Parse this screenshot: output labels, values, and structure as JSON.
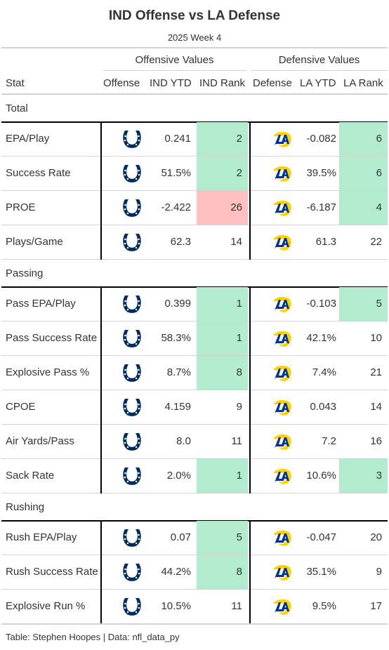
{
  "title": "IND Offense vs LA Defense",
  "subtitle": "2025 Week 4",
  "spanners": {
    "offense": "Offensive Values",
    "defense": "Defensive Values"
  },
  "columns": [
    "Stat",
    "Offense",
    "IND YTD",
    "IND Rank",
    "Defense",
    "LA YTD",
    "LA Rank"
  ],
  "colors": {
    "good_rank": "#b3ebcf",
    "bad_rank": "#ffc0c0",
    "colts_blue": "#002c5f",
    "rams_blue": "#003594",
    "rams_gold": "#ffd100"
  },
  "offense_logo_icon": "colts-horseshoe-icon",
  "defense_logo_icon": "rams-horn-icon",
  "groups": [
    {
      "label": "Total",
      "rows": [
        {
          "stat": "EPA/Play",
          "ind_ytd": "0.241",
          "ind_rank": "2",
          "ind_color": "good",
          "la_ytd": "-0.082",
          "la_rank": "6",
          "la_color": "good"
        },
        {
          "stat": "Success Rate",
          "ind_ytd": "51.5%",
          "ind_rank": "2",
          "ind_color": "good",
          "la_ytd": "39.5%",
          "la_rank": "6",
          "la_color": "good"
        },
        {
          "stat": "PROE",
          "ind_ytd": "-2.422",
          "ind_rank": "26",
          "ind_color": "bad",
          "la_ytd": "-6.187",
          "la_rank": "4",
          "la_color": "good"
        },
        {
          "stat": "Plays/Game",
          "ind_ytd": "62.3",
          "ind_rank": "14",
          "ind_color": "none",
          "la_ytd": "61.3",
          "la_rank": "22",
          "la_color": "none"
        }
      ]
    },
    {
      "label": "Passing",
      "rows": [
        {
          "stat": "Pass EPA/Play",
          "ind_ytd": "0.399",
          "ind_rank": "1",
          "ind_color": "good",
          "la_ytd": "-0.103",
          "la_rank": "5",
          "la_color": "good"
        },
        {
          "stat": "Pass Success Rate",
          "ind_ytd": "58.3%",
          "ind_rank": "1",
          "ind_color": "good",
          "la_ytd": "42.1%",
          "la_rank": "10",
          "la_color": "none"
        },
        {
          "stat": "Explosive Pass %",
          "ind_ytd": "8.7%",
          "ind_rank": "8",
          "ind_color": "good",
          "la_ytd": "7.4%",
          "la_rank": "21",
          "la_color": "none"
        },
        {
          "stat": "CPOE",
          "ind_ytd": "4.159",
          "ind_rank": "9",
          "ind_color": "none",
          "la_ytd": "0.043",
          "la_rank": "14",
          "la_color": "none"
        },
        {
          "stat": "Air Yards/Pass",
          "ind_ytd": "8.0",
          "ind_rank": "11",
          "ind_color": "none",
          "la_ytd": "7.2",
          "la_rank": "16",
          "la_color": "none"
        },
        {
          "stat": "Sack Rate",
          "ind_ytd": "2.0%",
          "ind_rank": "1",
          "ind_color": "good",
          "la_ytd": "10.6%",
          "la_rank": "3",
          "la_color": "good"
        }
      ]
    },
    {
      "label": "Rushing",
      "rows": [
        {
          "stat": "Rush EPA/Play",
          "ind_ytd": "0.07",
          "ind_rank": "5",
          "ind_color": "good",
          "la_ytd": "-0.047",
          "la_rank": "20",
          "la_color": "none"
        },
        {
          "stat": "Rush Success Rate",
          "ind_ytd": "44.2%",
          "ind_rank": "8",
          "ind_color": "good",
          "la_ytd": "35.1%",
          "la_rank": "9",
          "la_color": "none"
        },
        {
          "stat": "Explosive Run %",
          "ind_ytd": "10.5%",
          "ind_rank": "11",
          "ind_color": "none",
          "la_ytd": "9.5%",
          "la_rank": "17",
          "la_color": "none"
        }
      ]
    }
  ],
  "footer": "Table: Stephen Hoopes | Data: nfl_data_py"
}
